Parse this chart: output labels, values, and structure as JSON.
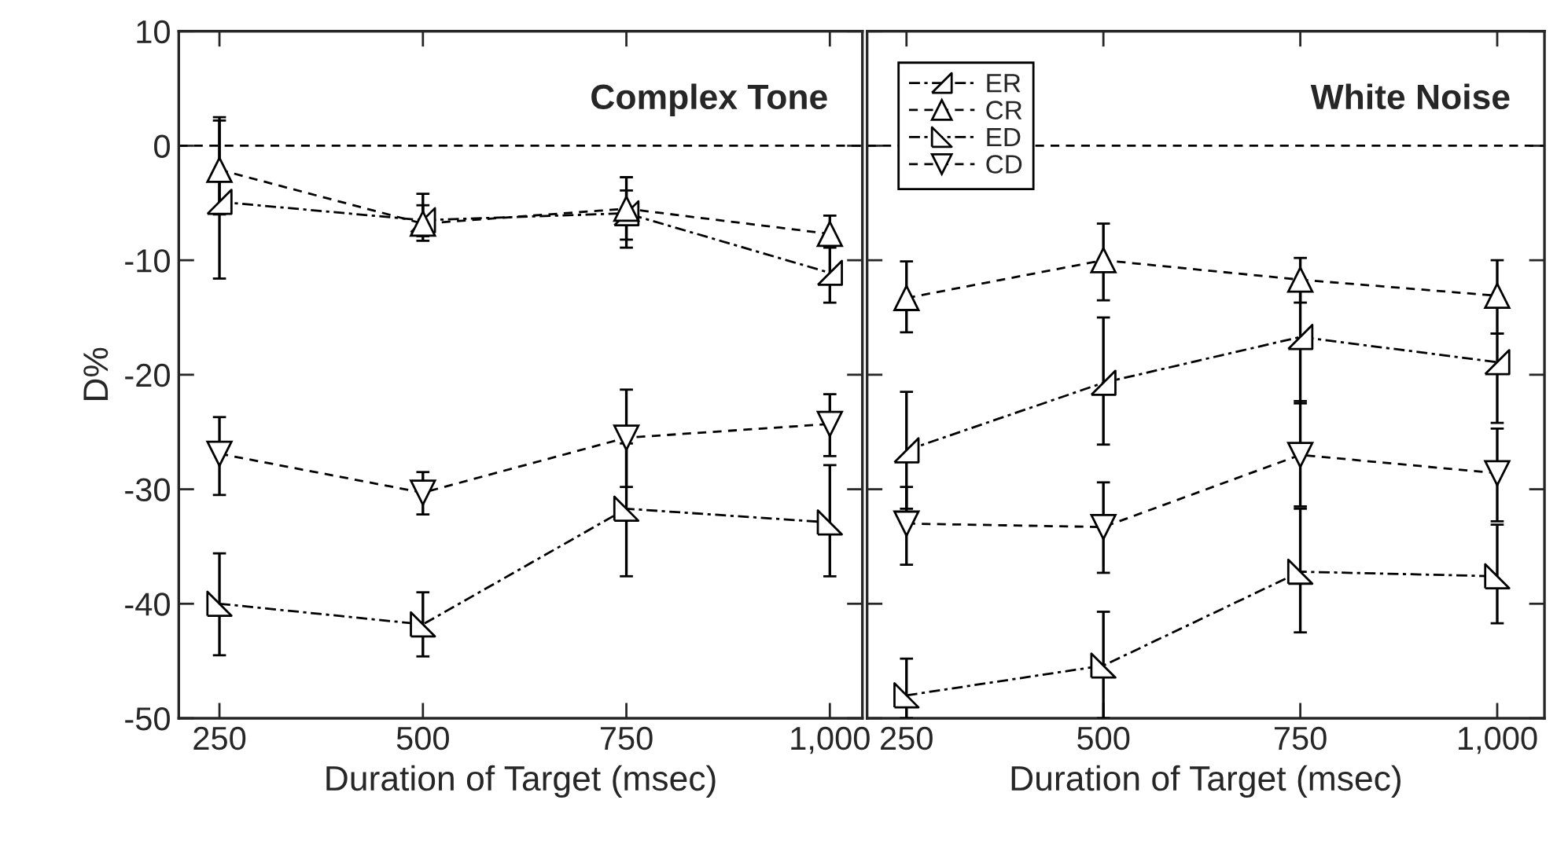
{
  "chart_data": [
    {
      "type": "line",
      "title": "Complex Tone",
      "xlabel": "Duration of Target (msec)",
      "ylabel": "D%",
      "x": [
        250,
        500,
        750,
        1000
      ],
      "xlim": [
        200,
        1040
      ],
      "ylim": [
        -50,
        10
      ],
      "xticks": [
        250,
        500,
        750,
        {
          "value": 1000,
          "label": "1,000"
        }
      ],
      "yticks": [
        -50,
        -40,
        -30,
        -20,
        -10,
        0,
        10
      ],
      "ref_lines": [
        {
          "axis": "y",
          "value": 0,
          "line_style": "dashed",
          "color": "#000000"
        }
      ],
      "grid": false,
      "series": [
        {
          "color": "#000000",
          "marker": "triangle",
          "line_style": "dashdot",
          "values": [
            -4.9,
            -6.5,
            -5.9,
            -11.1
          ],
          "errors": [
            [
              -11.6,
              2.2
            ],
            [
              -7.9,
              -5.2
            ],
            [
              -8.9,
              -3.9
            ],
            [
              -13.7,
              -8.5
            ]
          ]
        },
        {
          "color": "#000000",
          "marker": "triangle",
          "line_style": "dashed",
          "values": [
            -2.1,
            -6.8,
            -5.5,
            -7.7
          ],
          "errors": [
            [
              -6.0,
              2.5
            ],
            [
              -8.3,
              -4.2
            ],
            [
              -8.2,
              -2.75
            ],
            [
              -8.9,
              -6.1
            ]
          ]
        },
        {
          "color": "#000000",
          "marker": "triangle",
          "line_style": "dashdot",
          "values": [
            -40.0,
            -41.8,
            -31.7,
            -32.9
          ],
          "errors": [
            [
              -44.5,
              -35.6
            ],
            [
              -44.6,
              -39.0
            ],
            [
              -37.6,
              -26.0
            ],
            [
              -37.6,
              -27.9
            ]
          ]
        },
        {
          "color": "#000000",
          "marker": "triangle",
          "line_style": "dashed",
          "values": [
            -26.9,
            -30.3,
            -25.5,
            -24.3
          ],
          "errors": [
            [
              -30.5,
              -23.7
            ],
            [
              -32.2,
              -28.5
            ],
            [
              -29.8,
              -21.3
            ],
            [
              -27.1,
              -21.7
            ]
          ]
        }
      ]
    },
    {
      "type": "line",
      "title": "White Noise",
      "xlabel": "Duration of Target (msec)",
      "x": [
        250,
        500,
        750,
        1000
      ],
      "xlim": [
        200,
        1060
      ],
      "ylim": [
        -50,
        10
      ],
      "xticks": [
        250,
        500,
        750,
        {
          "value": 1000,
          "label": "1,000"
        }
      ],
      "yticks": [
        -50,
        -40,
        -30,
        -20,
        -10,
        0,
        10
      ],
      "tick_labels": "x",
      "ref_lines": [
        {
          "axis": "y",
          "value": 0,
          "line_style": "dashed",
          "color": "#000000"
        }
      ],
      "legend": "top left",
      "grid": false,
      "series": [
        {
          "name": "ER",
          "color": "#000000",
          "marker": "triangle",
          "line_style": "dashdot",
          "values": [
            -26.6,
            -20.7,
            -16.7,
            -18.9
          ],
          "errors": [
            [
              -31.7,
              -21.5
            ],
            [
              -26.1,
              -15.0
            ],
            [
              -22.5,
              -12.0
            ],
            [
              -24.2,
              -16.4
            ]
          ]
        },
        {
          "name": "CR",
          "color": "#000000",
          "marker": "triangle",
          "line_style": "dashed",
          "values": [
            -13.3,
            -10.0,
            -11.7,
            -13.1
          ],
          "errors": [
            [
              -16.3,
              -10.1
            ],
            [
              -13.5,
              -6.8
            ],
            [
              -13.7,
              -9.8
            ],
            [
              -16.4,
              -10.0
            ]
          ]
        },
        {
          "name": "ED",
          "color": "#000000",
          "marker": "triangle",
          "line_style": "dashdot",
          "values": [
            -48.0,
            -45.4,
            -37.2,
            -37.6
          ],
          "errors": [
            [
              -50,
              -44.8
            ],
            [
              -50,
              -40.7
            ],
            [
              -42.5,
              -31.7
            ],
            [
              -41.7,
              -33.1
            ]
          ]
        },
        {
          "name": "CD",
          "color": "#000000",
          "marker": "triangle",
          "line_style": "dashed",
          "values": [
            -33.0,
            -33.3,
            -27.0,
            -28.6
          ],
          "errors": [
            [
              -36.6,
              -29.8
            ],
            [
              -37.3,
              -29.4
            ],
            [
              -31.5,
              -22.3
            ],
            [
              -32.8,
              -24.7
            ]
          ]
        }
      ]
    }
  ]
}
